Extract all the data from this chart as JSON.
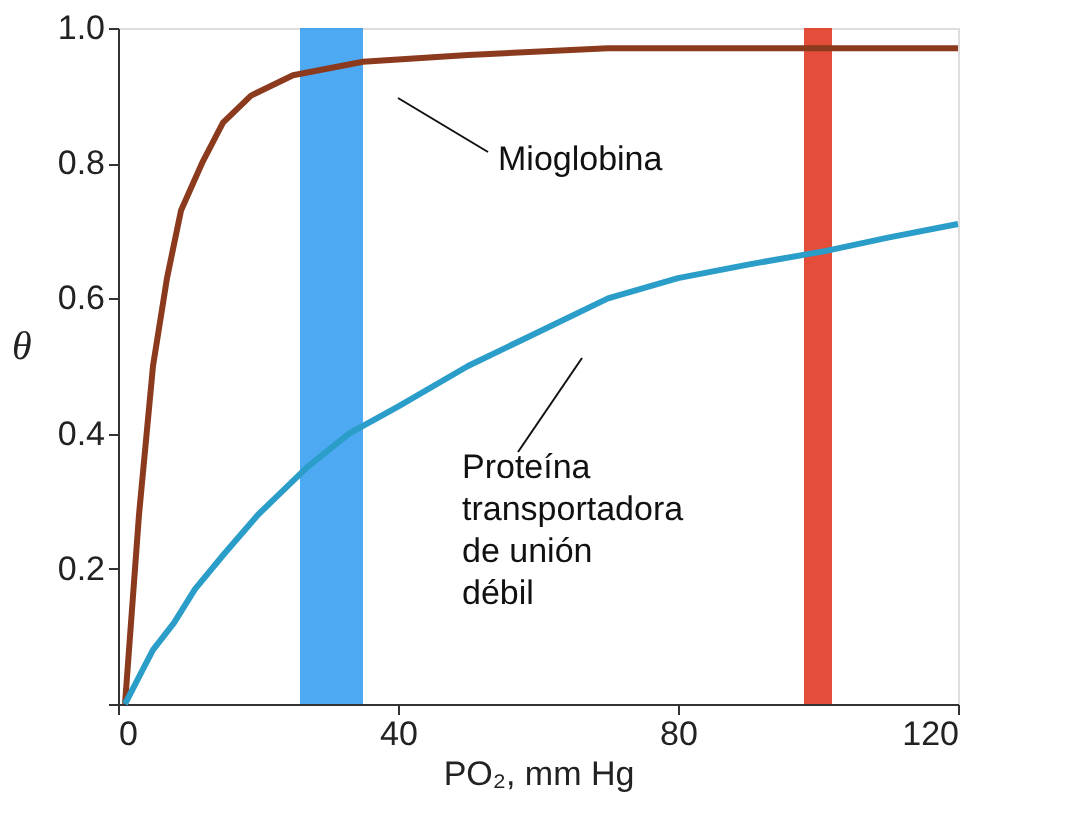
{
  "chart_data": {
    "type": "line",
    "xlabel": "PO₂, mm Hg",
    "ylabel": "θ",
    "xlim": [
      0,
      120
    ],
    "ylim": [
      0,
      1.0
    ],
    "xticks": [
      0,
      40,
      80,
      120
    ],
    "yticks": [
      {
        "value": 0,
        "label": null
      },
      0.2,
      0.4,
      0.6,
      0.8,
      {
        "value": 1.0,
        "label": "1.0"
      }
    ],
    "grid": false,
    "marker": "none",
    "line_style": "solid",
    "series": [
      {
        "name": "Mioglobina",
        "color": "#8b3a1e",
        "x": [
          1,
          3,
          5,
          7,
          9,
          12,
          15,
          19,
          25,
          35,
          50,
          70,
          90,
          120
        ],
        "values": [
          0,
          0.28,
          0.5,
          0.63,
          0.73,
          0.8,
          0.86,
          0.9,
          0.93,
          0.95,
          0.96,
          0.97,
          0.97,
          0.97
        ]
      },
      {
        "name": "Proteína transportadora de unión débil",
        "color": "#2a9dc8",
        "x": [
          1,
          3,
          5,
          8,
          11,
          15,
          20,
          27,
          33,
          40,
          50,
          58,
          70,
          80,
          90,
          101,
          110,
          120
        ],
        "values": [
          0,
          0.04,
          0.08,
          0.12,
          0.17,
          0.22,
          0.28,
          0.35,
          0.4,
          0.44,
          0.5,
          0.54,
          0.6,
          0.63,
          0.65,
          0.67,
          0.69,
          0.71
        ]
      }
    ],
    "bands": [
      {
        "axis": "x",
        "from": 26,
        "to": 35,
        "color": "#3aa0f0"
      },
      {
        "axis": "x",
        "from": 98,
        "to": 102,
        "color": "#e03a24"
      }
    ]
  }
}
